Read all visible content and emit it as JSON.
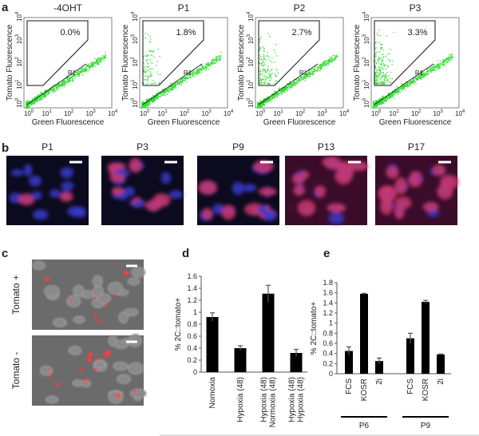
{
  "panel_a": {
    "letter": "a",
    "y_label": "Tomato Fluorescence",
    "x_label": "Green Fluorescence",
    "gate_label": "R1",
    "tick_base": "10",
    "tick_exponents": [
      "0",
      "1",
      "2",
      "3",
      "4"
    ],
    "plots": [
      {
        "title": "-4OHT",
        "percent": "0.0%"
      },
      {
        "title": "P1",
        "percent": "1.8%"
      },
      {
        "title": "P2",
        "percent": "2.7%"
      },
      {
        "title": "P3",
        "percent": "3.3%"
      }
    ]
  },
  "panel_b": {
    "letter": "b",
    "images": [
      "P1",
      "P3",
      "P9",
      "P13",
      "P17"
    ]
  },
  "panel_c": {
    "letter": "c",
    "images": [
      "Tomato +",
      "Tomato -"
    ]
  },
  "panel_d": {
    "letter": "d",
    "type": "bar",
    "y_label": "% 2C::tomato+",
    "ylim": [
      0,
      1.6
    ],
    "yticks": [
      0,
      0.2,
      0.4,
      0.6,
      0.8,
      1,
      1.2,
      1.4,
      1.6
    ],
    "categories": [
      [
        "Nomoxia"
      ],
      [
        "Hypoxia (48)"
      ],
      [
        "Hypoxia (48)",
        "Normoxia (48)"
      ],
      [
        "Hypoxia (48)",
        "Hypoxia (48)"
      ]
    ],
    "values": [
      0.92,
      0.4,
      1.31,
      0.32
    ],
    "errors": [
      0.07,
      0.04,
      0.14,
      0.06
    ],
    "color": "#000000"
  },
  "panel_e": {
    "letter": "e",
    "type": "bar",
    "y_label": "% 2C::tomato+",
    "ylim": [
      0,
      1.8
    ],
    "yticks": [
      0,
      0.2,
      0.4,
      0.6,
      0.8,
      1,
      1.2,
      1.4,
      1.6,
      1.8
    ],
    "color": "#000000",
    "groups": [
      {
        "name": "P6",
        "categories": [
          "FCS",
          "KOSR",
          "2i"
        ],
        "values": [
          0.45,
          1.58,
          0.25
        ],
        "errors": [
          0.08,
          0.01,
          0.06
        ]
      },
      {
        "name": "P9",
        "categories": [
          "FCS",
          "KOSR",
          "2i"
        ],
        "values": [
          0.7,
          1.42,
          0.38
        ],
        "errors": [
          0.1,
          0.03,
          0.01
        ]
      }
    ]
  }
}
